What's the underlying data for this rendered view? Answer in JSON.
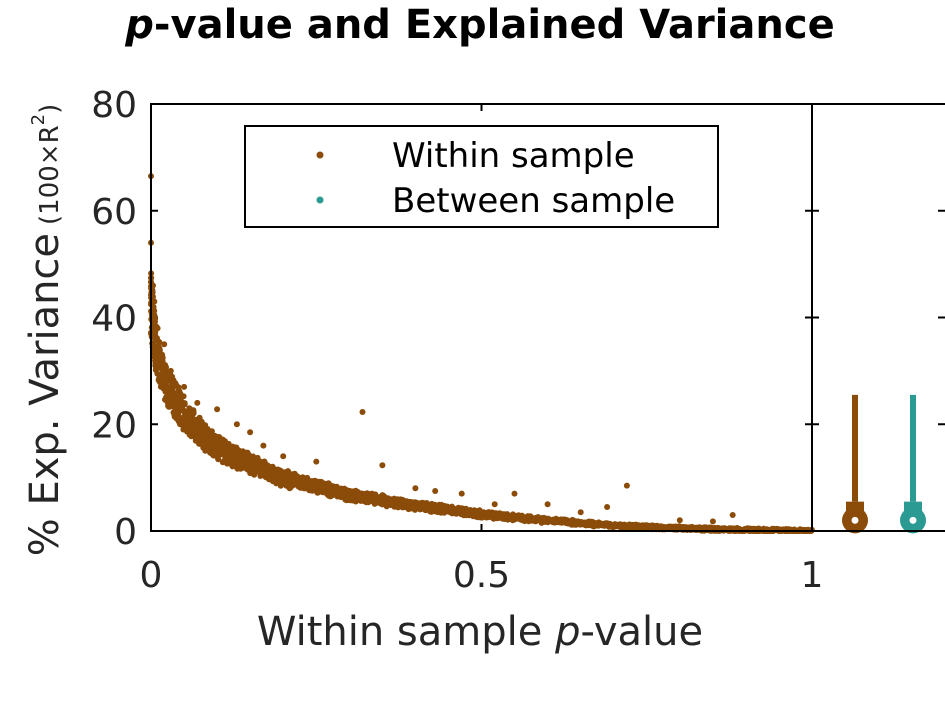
{
  "chart_data": {
    "type": "scatter",
    "title_italic": "p",
    "title_rest": "-value and Explained Variance",
    "xlabel_prefix": "Within sample ",
    "xlabel_italic": "p",
    "xlabel_suffix": "-value",
    "ylabel_main": "% Exp. Variance",
    "ylabel_sub": "(100×R",
    "ylabel_sup": "2",
    "ylabel_close": ")",
    "xlim": [
      0,
      1
    ],
    "ylim": [
      0,
      80
    ],
    "xticks": [
      "0",
      "0.5",
      "1"
    ],
    "xtick_values": [
      0,
      0.5,
      1
    ],
    "yticks": [
      "0",
      "20",
      "40",
      "60",
      "80"
    ],
    "ytick_values": [
      0,
      20,
      40,
      60,
      80
    ],
    "legend_position": "top",
    "series": [
      {
        "name": "Within sample",
        "color": "#8B4C0A",
        "trend": [
          [
            0.0,
            41
          ],
          [
            0.005,
            35
          ],
          [
            0.01,
            31
          ],
          [
            0.02,
            27
          ],
          [
            0.03,
            25
          ],
          [
            0.05,
            21
          ],
          [
            0.08,
            17
          ],
          [
            0.1,
            15
          ],
          [
            0.15,
            12
          ],
          [
            0.2,
            9.5
          ],
          [
            0.25,
            8
          ],
          [
            0.3,
            6.5
          ],
          [
            0.35,
            5.5
          ],
          [
            0.4,
            4.5
          ],
          [
            0.45,
            3.8
          ],
          [
            0.5,
            3.0
          ],
          [
            0.55,
            2.4
          ],
          [
            0.6,
            1.9
          ],
          [
            0.65,
            1.4
          ],
          [
            0.7,
            1.0
          ],
          [
            0.75,
            0.7
          ],
          [
            0.8,
            0.5
          ],
          [
            0.85,
            0.3
          ],
          [
            0.9,
            0.2
          ],
          [
            0.95,
            0.1
          ],
          [
            1.0,
            0.0
          ]
        ],
        "outliers": [
          [
            0.0,
            66.5
          ],
          [
            0.0,
            54
          ],
          [
            0.003,
            46
          ],
          [
            0.005,
            43
          ],
          [
            0.01,
            38
          ],
          [
            0.02,
            35
          ],
          [
            0.03,
            30
          ],
          [
            0.05,
            27
          ],
          [
            0.07,
            24
          ],
          [
            0.1,
            22.8
          ],
          [
            0.13,
            20
          ],
          [
            0.15,
            18.5
          ],
          [
            0.17,
            16
          ],
          [
            0.2,
            14
          ],
          [
            0.25,
            13
          ],
          [
            0.32,
            22.3
          ],
          [
            0.35,
            12.3
          ],
          [
            0.4,
            8
          ],
          [
            0.43,
            7.5
          ],
          [
            0.47,
            7
          ],
          [
            0.52,
            5
          ],
          [
            0.55,
            7
          ],
          [
            0.6,
            5
          ],
          [
            0.65,
            3.5
          ],
          [
            0.69,
            4.5
          ],
          [
            0.72,
            8.5
          ],
          [
            0.8,
            2
          ],
          [
            0.85,
            1.8
          ],
          [
            0.88,
            3
          ]
        ]
      },
      {
        "name": "Between sample",
        "color": "#2B9A93"
      }
    ],
    "boxplots": [
      {
        "series": "Within sample",
        "min": 0.0,
        "q1": 0.3,
        "median": 2.0,
        "q3": 5.5,
        "max": 25.5
      },
      {
        "series": "Between sample",
        "min": 0.0,
        "q1": 0.3,
        "median": 2.0,
        "q3": 5.5,
        "max": 25.5
      }
    ]
  }
}
